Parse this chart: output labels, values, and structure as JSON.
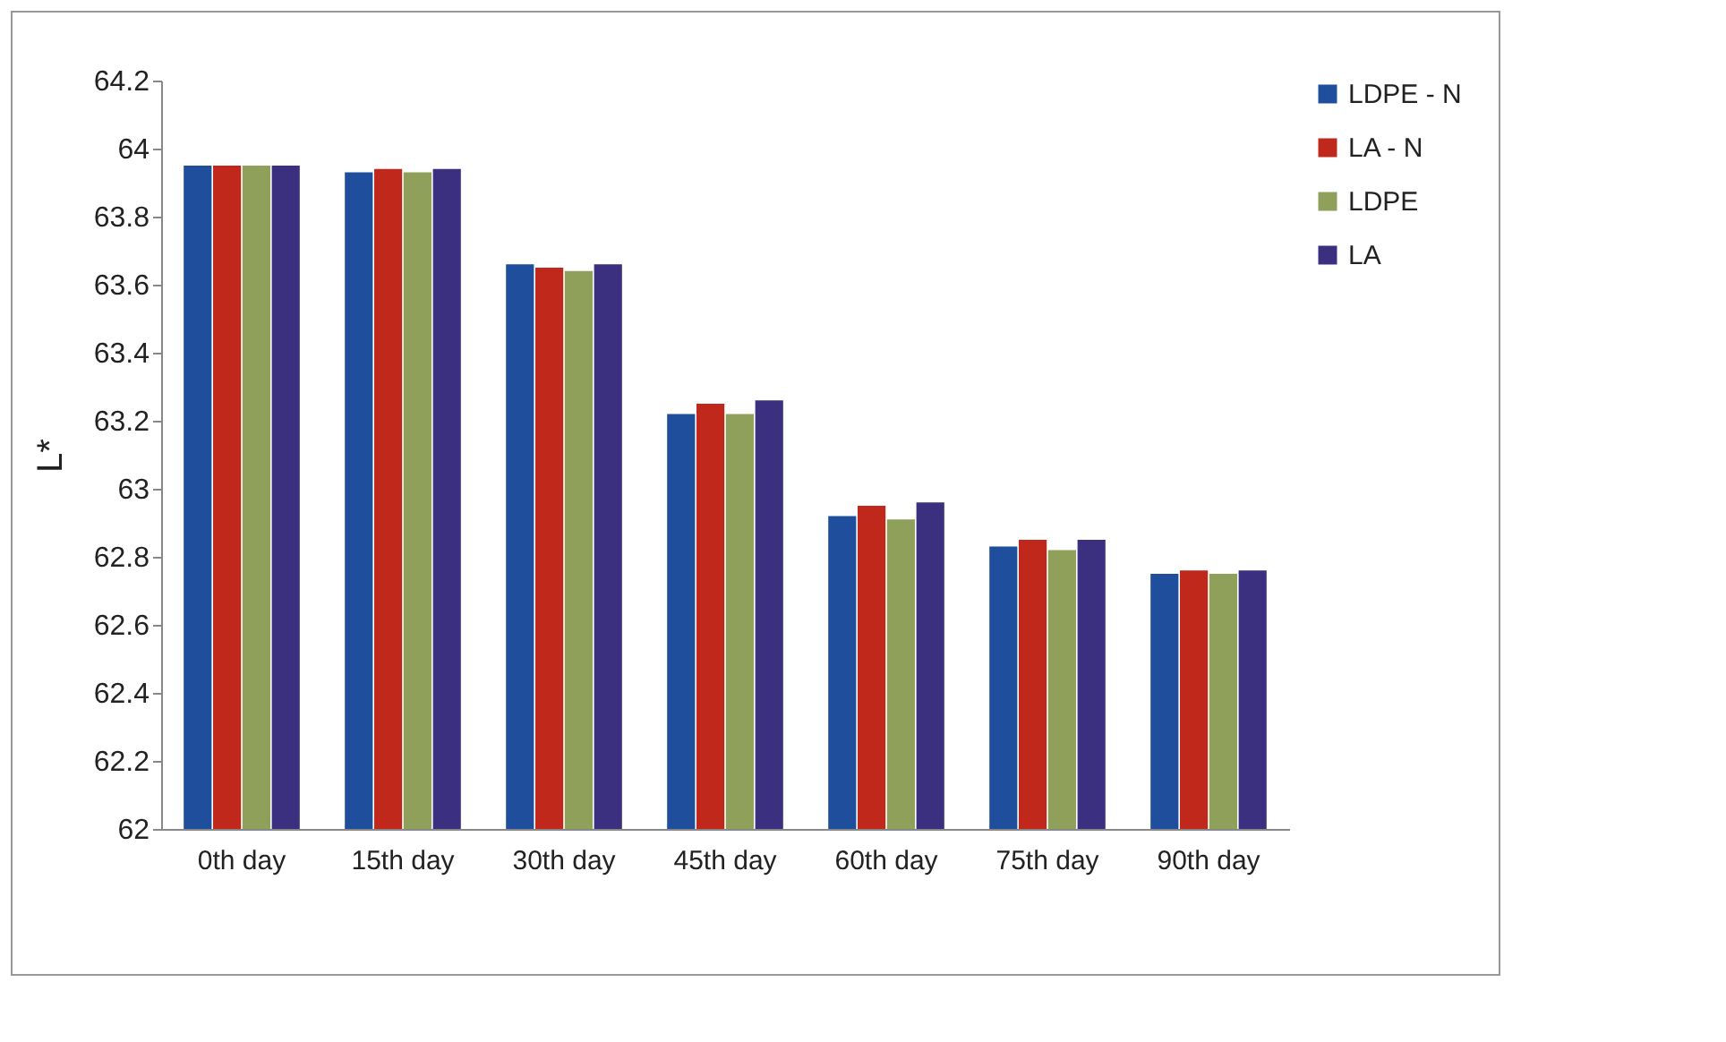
{
  "chart_data": {
    "type": "bar",
    "ylabel": "L*",
    "categories": [
      "0th day",
      "15th day",
      "30th day",
      "45th day",
      "60th day",
      "75th day",
      "90th day"
    ],
    "series": [
      {
        "name": "LDPE - N",
        "color": "#1f4e9c",
        "values": [
          63.95,
          63.93,
          63.66,
          63.22,
          62.92,
          62.83,
          62.75
        ]
      },
      {
        "name": "LA - N",
        "color": "#c0281c",
        "values": [
          63.95,
          63.94,
          63.65,
          63.25,
          62.95,
          62.85,
          62.76
        ]
      },
      {
        "name": "LDPE",
        "color": "#8ea05a",
        "values": [
          63.95,
          63.93,
          63.64,
          63.22,
          62.91,
          62.82,
          62.75
        ]
      },
      {
        "name": "LA",
        "color": "#3b2f80",
        "values": [
          63.95,
          63.94,
          63.66,
          63.26,
          62.96,
          62.85,
          62.76
        ]
      }
    ],
    "ylim": [
      62,
      64.2
    ],
    "yticks": [
      62,
      62.2,
      62.4,
      62.6,
      62.8,
      63,
      63.2,
      63.4,
      63.6,
      63.8,
      64,
      64.2
    ],
    "grid": false,
    "legend": "right"
  }
}
